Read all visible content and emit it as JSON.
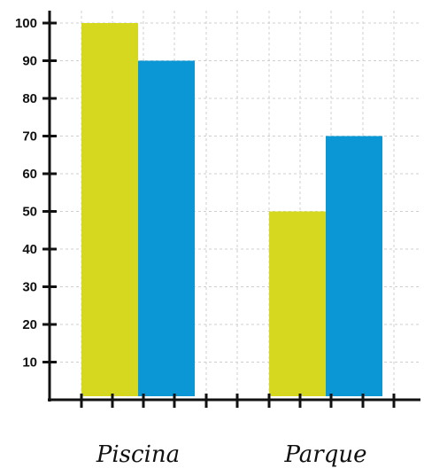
{
  "chart_data": {
    "type": "bar",
    "categories": [
      "Piscina",
      "Parque"
    ],
    "series": [
      {
        "values": [
          100,
          50
        ]
      },
      {
        "values": [
          90,
          70
        ]
      }
    ],
    "yticks": [
      "10",
      "20",
      "30",
      "40",
      "50",
      "60",
      "70",
      "80",
      "90",
      "100"
    ],
    "ylim": [
      0,
      100
    ],
    "grid": true,
    "colors": [
      "#d6d81f",
      "#0b97d6"
    ],
    "axis_color": "#111111",
    "grid_color": "#cfcfcf"
  }
}
